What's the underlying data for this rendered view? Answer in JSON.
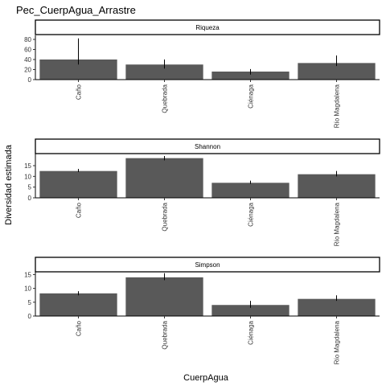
{
  "chart_data": {
    "type": "bar",
    "title": "Pec_CuerpAgua_Arrastre",
    "xlabel": "CuerpAgua",
    "ylabel": "Diversidad estimada",
    "categories": [
      "Caño",
      "Quebrada",
      "Ciénaga",
      "Río Magdalena"
    ],
    "grid": false,
    "bar_color": "#595959",
    "panels": [
      {
        "name": "Riqueza",
        "ylim": [
          0,
          88
        ],
        "yticks": [
          0,
          20,
          40,
          60,
          80
        ],
        "values": [
          40,
          30,
          16,
          33
        ],
        "error_low": [
          30,
          22,
          10,
          27
        ],
        "error_high": [
          82,
          40,
          21,
          48
        ]
      },
      {
        "name": "Shannon",
        "ylim": [
          0,
          21
        ],
        "yticks": [
          0,
          5,
          10,
          15
        ],
        "values": [
          12.5,
          18.5,
          7,
          11
        ],
        "error_low": [
          12,
          17.5,
          6.5,
          10
        ],
        "error_high": [
          13.5,
          19.5,
          8,
          12.5
        ]
      },
      {
        "name": "Simpson",
        "ylim": [
          0,
          16
        ],
        "yticks": [
          0,
          5,
          10,
          15
        ],
        "values": [
          8.2,
          14,
          4,
          6.2
        ],
        "error_low": [
          7.5,
          13,
          3,
          5.5
        ],
        "error_high": [
          9,
          15.5,
          5.5,
          7.5
        ]
      }
    ]
  }
}
